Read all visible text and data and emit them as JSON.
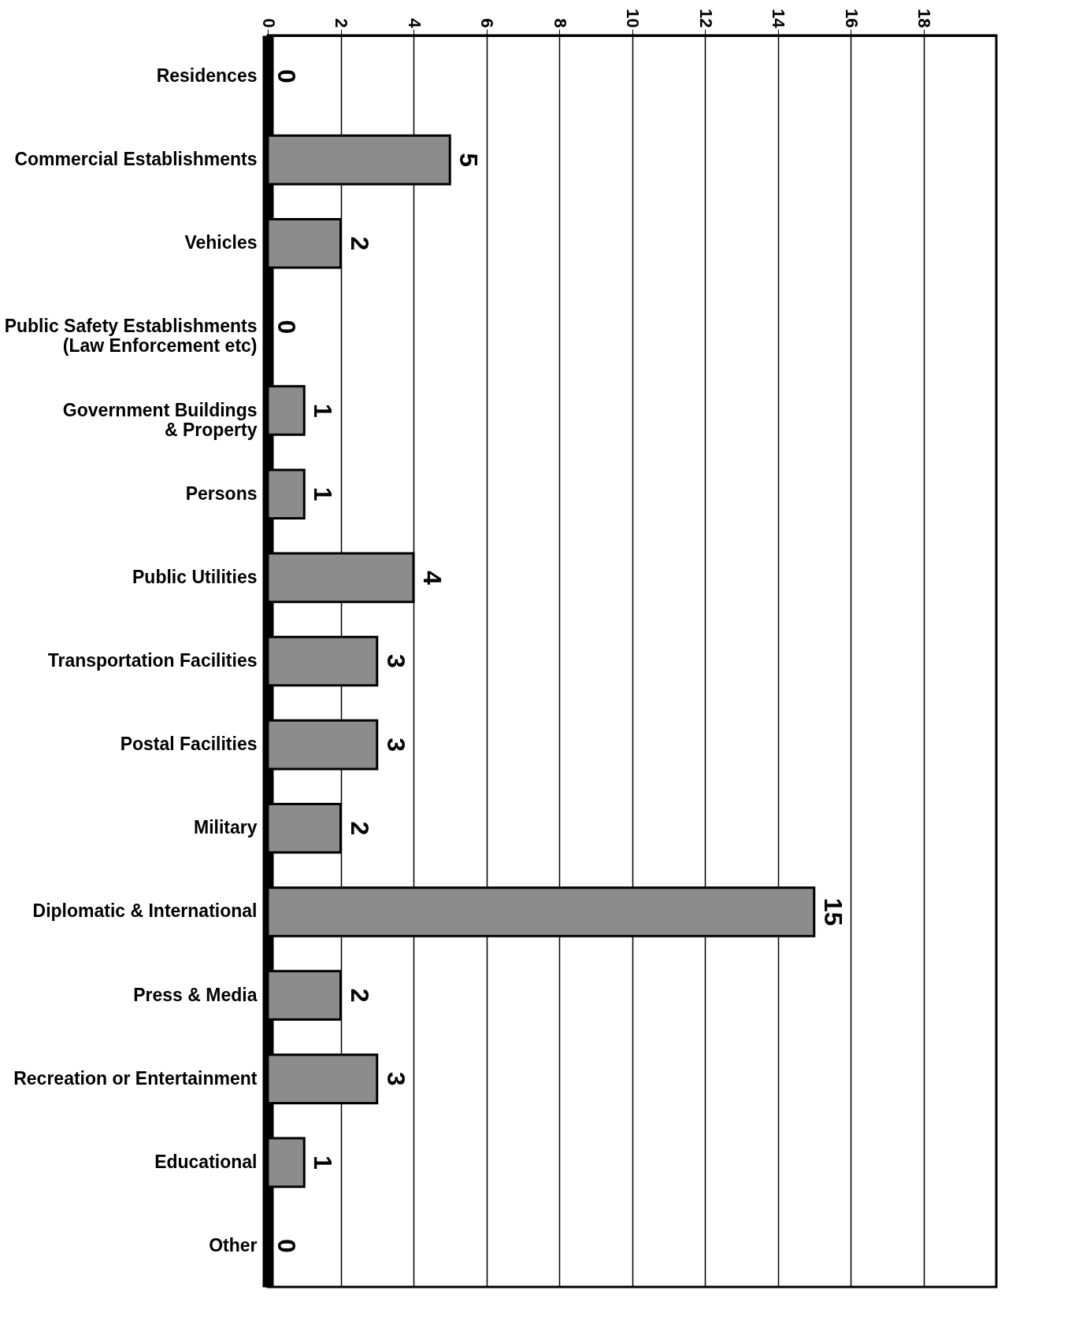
{
  "chart_data": {
    "type": "bar",
    "orientation": "horizontal",
    "categories": [
      "Residences",
      "Commercial Establishments",
      "Vehicles",
      "Public Safety Establishments\n(Law Enforcement etc)",
      "Government Buildings\n& Property",
      "Persons",
      "Public Utilities",
      "Transportation Facilities",
      "Postal Facilities",
      "Military",
      "Diplomatic & International",
      "Press & Media",
      "Recreation or Entertainment",
      "Educational",
      "Other"
    ],
    "values": [
      0,
      5,
      2,
      0,
      1,
      1,
      4,
      3,
      3,
      2,
      15,
      2,
      3,
      1,
      0
    ],
    "color": "#8c8c8c",
    "xlim": [
      0,
      20
    ],
    "xticks": [
      0,
      2,
      4,
      6,
      8,
      10,
      12,
      14,
      16,
      18
    ],
    "grid": "x",
    "data_labels": true
  }
}
